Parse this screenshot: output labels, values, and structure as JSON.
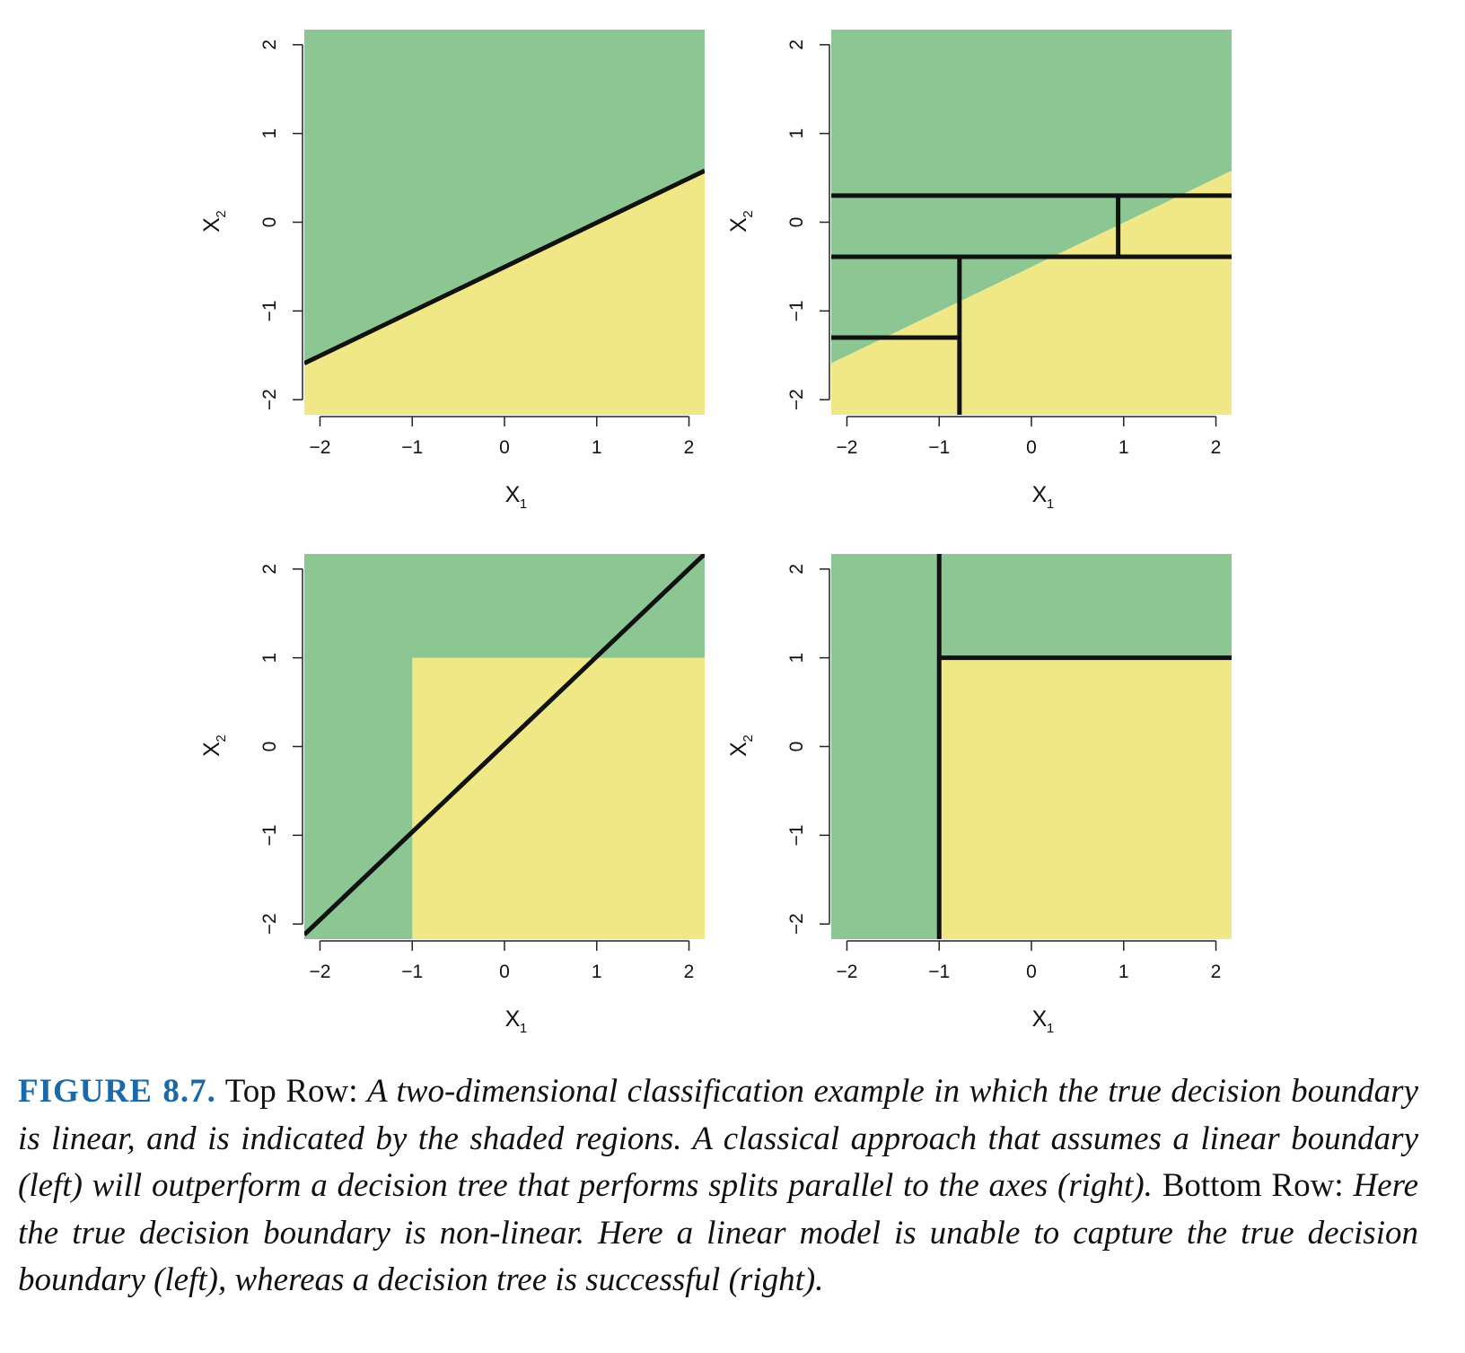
{
  "colors": {
    "green": "#8cc793",
    "yellow": "#f0e886",
    "line": "#111111"
  },
  "chart_data": [
    {
      "type": "region",
      "panel": "top-left",
      "xlabel": "X",
      "xlabel_sub": "1",
      "ylabel": "X",
      "ylabel_sub": "2",
      "xlim": [
        -2.17,
        2.17
      ],
      "ylim": [
        -2.17,
        2.17
      ],
      "xticks": [
        -2,
        -1,
        0,
        1,
        2
      ],
      "yticks": [
        -2,
        -1,
        0,
        1,
        2
      ],
      "xtick_labels": [
        "−2",
        "−1",
        "0",
        "1",
        "2"
      ],
      "ytick_labels": [
        "−2",
        "−1",
        "0",
        "1",
        "2"
      ],
      "regions": [
        {
          "color": "green",
          "polygon": [
            [
              -2.17,
              -1.59
            ],
            [
              2.17,
              0.58
            ],
            [
              2.17,
              2.17
            ],
            [
              -2.17,
              2.17
            ]
          ]
        },
        {
          "color": "yellow",
          "polygon": [
            [
              -2.17,
              -2.17
            ],
            [
              2.17,
              -2.17
            ],
            [
              2.17,
              0.58
            ],
            [
              -2.17,
              -1.59
            ]
          ]
        }
      ],
      "lines": [
        {
          "x": [
            -2.17,
            2.17
          ],
          "y": [
            -1.59,
            0.58
          ]
        }
      ]
    },
    {
      "type": "region",
      "panel": "top-right",
      "xlabel": "X",
      "xlabel_sub": "1",
      "ylabel": "X",
      "ylabel_sub": "2",
      "xlim": [
        -2.17,
        2.17
      ],
      "ylim": [
        -2.17,
        2.17
      ],
      "xticks": [
        -2,
        -1,
        0,
        1,
        2
      ],
      "yticks": [
        -2,
        -1,
        0,
        1,
        2
      ],
      "xtick_labels": [
        "−2",
        "−1",
        "0",
        "1",
        "2"
      ],
      "ytick_labels": [
        "−2",
        "−1",
        "0",
        "1",
        "2"
      ],
      "regions": [
        {
          "color": "green",
          "polygon": [
            [
              -2.17,
              -1.59
            ],
            [
              2.17,
              0.58
            ],
            [
              2.17,
              2.17
            ],
            [
              -2.17,
              2.17
            ]
          ]
        },
        {
          "color": "yellow",
          "polygon": [
            [
              -2.17,
              -2.17
            ],
            [
              2.17,
              -2.17
            ],
            [
              2.17,
              0.58
            ],
            [
              -2.17,
              -1.59
            ]
          ]
        }
      ],
      "lines": [
        {
          "x": [
            -2.17,
            2.17
          ],
          "y": [
            0.3,
            0.3
          ]
        },
        {
          "x": [
            -2.17,
            2.17
          ],
          "y": [
            -0.39,
            -0.39
          ]
        },
        {
          "x": [
            0.94,
            0.94
          ],
          "y": [
            -0.39,
            0.3
          ]
        },
        {
          "x": [
            -0.78,
            -0.78
          ],
          "y": [
            -2.17,
            -0.39
          ]
        },
        {
          "x": [
            -2.17,
            -0.78
          ],
          "y": [
            -1.3,
            -1.3
          ]
        }
      ]
    },
    {
      "type": "region",
      "panel": "bottom-left",
      "xlabel": "X",
      "xlabel_sub": "1",
      "ylabel": "X",
      "ylabel_sub": "2",
      "xlim": [
        -2.17,
        2.17
      ],
      "ylim": [
        -2.17,
        2.17
      ],
      "xticks": [
        -2,
        -1,
        0,
        1,
        2
      ],
      "yticks": [
        -2,
        -1,
        0,
        1,
        2
      ],
      "xtick_labels": [
        "−2",
        "−1",
        "0",
        "1",
        "2"
      ],
      "ytick_labels": [
        "−2",
        "−1",
        "0",
        "1",
        "2"
      ],
      "regions": [
        {
          "color": "green",
          "polygon": [
            [
              -2.17,
              -2.17
            ],
            [
              2.17,
              -2.17
            ],
            [
              2.17,
              2.17
            ],
            [
              -2.17,
              2.17
            ]
          ]
        },
        {
          "color": "yellow",
          "polygon": [
            [
              -1,
              -2.17
            ],
            [
              2.17,
              -2.17
            ],
            [
              2.17,
              1
            ],
            [
              -1,
              1
            ]
          ]
        }
      ],
      "lines": [
        {
          "x": [
            -2.17,
            2.17
          ],
          "y": [
            -2.12,
            2.17
          ]
        }
      ]
    },
    {
      "type": "region",
      "panel": "bottom-right",
      "xlabel": "X",
      "xlabel_sub": "1",
      "ylabel": "X",
      "ylabel_sub": "2",
      "xlim": [
        -2.17,
        2.17
      ],
      "ylim": [
        -2.17,
        2.17
      ],
      "xticks": [
        -2,
        -1,
        0,
        1,
        2
      ],
      "yticks": [
        -2,
        -1,
        0,
        1,
        2
      ],
      "xtick_labels": [
        "−2",
        "−1",
        "0",
        "1",
        "2"
      ],
      "ytick_labels": [
        "−2",
        "−1",
        "0",
        "1",
        "2"
      ],
      "regions": [
        {
          "color": "green",
          "polygon": [
            [
              -2.17,
              -2.17
            ],
            [
              2.17,
              -2.17
            ],
            [
              2.17,
              2.17
            ],
            [
              -2.17,
              2.17
            ]
          ]
        },
        {
          "color": "yellow",
          "polygon": [
            [
              -1,
              -2.17
            ],
            [
              2.17,
              -2.17
            ],
            [
              2.17,
              1
            ],
            [
              -1,
              1
            ]
          ]
        }
      ],
      "lines": [
        {
          "x": [
            -1,
            -1
          ],
          "y": [
            -2.17,
            2.17
          ]
        },
        {
          "x": [
            -1,
            2.17
          ],
          "y": [
            1,
            1
          ]
        }
      ]
    }
  ],
  "caption": {
    "figure_label": "FIGURE 8.7.",
    "top_row_label": "Top Row:",
    "top_row_text": "A two-dimensional classification example in which the true decision boundary is linear, and is indicated by the shaded regions. A classical approach that assumes a linear boundary (left) will outperform a decision tree that performs splits parallel to the axes (right).",
    "bottom_row_label": "Bottom Row:",
    "bottom_row_text": "Here the true decision boundary is non-linear. Here a linear model is unable to capture the true decision boundary (left), whereas a decision tree is successful (right)."
  }
}
